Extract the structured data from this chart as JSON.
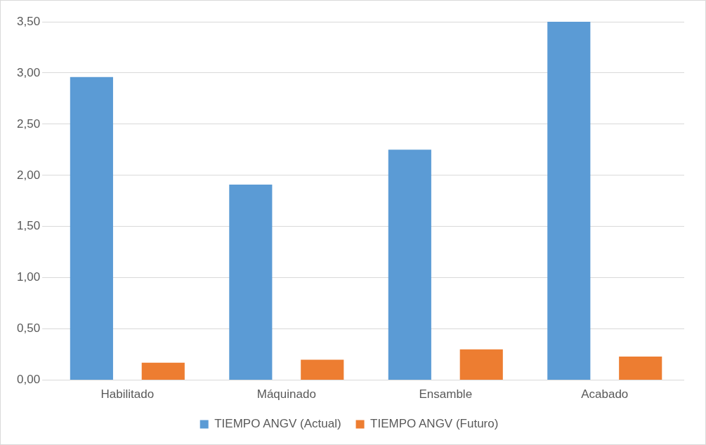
{
  "chart_data": {
    "type": "bar",
    "categories": [
      "Habilitado",
      "Máquinado",
      "Ensamble",
      "Acabado"
    ],
    "series": [
      {
        "name": "TIEMPO ANGV (Actual)",
        "color": "#5b9bd5",
        "values": [
          2.96,
          1.91,
          2.25,
          3.5
        ]
      },
      {
        "name": "TIEMPO ANGV (Futuro)",
        "color": "#ed7d31",
        "values": [
          0.17,
          0.2,
          0.3,
          0.23
        ]
      }
    ],
    "ylim": [
      0,
      3.5
    ],
    "yticks": [
      {
        "value": 0,
        "label": "0,00"
      },
      {
        "value": 0.5,
        "label": "0,50"
      },
      {
        "value": 1,
        "label": "1,00"
      },
      {
        "value": 1.5,
        "label": "1,50"
      },
      {
        "value": 2,
        "label": "2,00"
      },
      {
        "value": 2.5,
        "label": "2,50"
      },
      {
        "value": 3,
        "label": "3,00"
      },
      {
        "value": 3.5,
        "label": "3,50"
      }
    ],
    "grid": "y",
    "legend": "bottom"
  }
}
